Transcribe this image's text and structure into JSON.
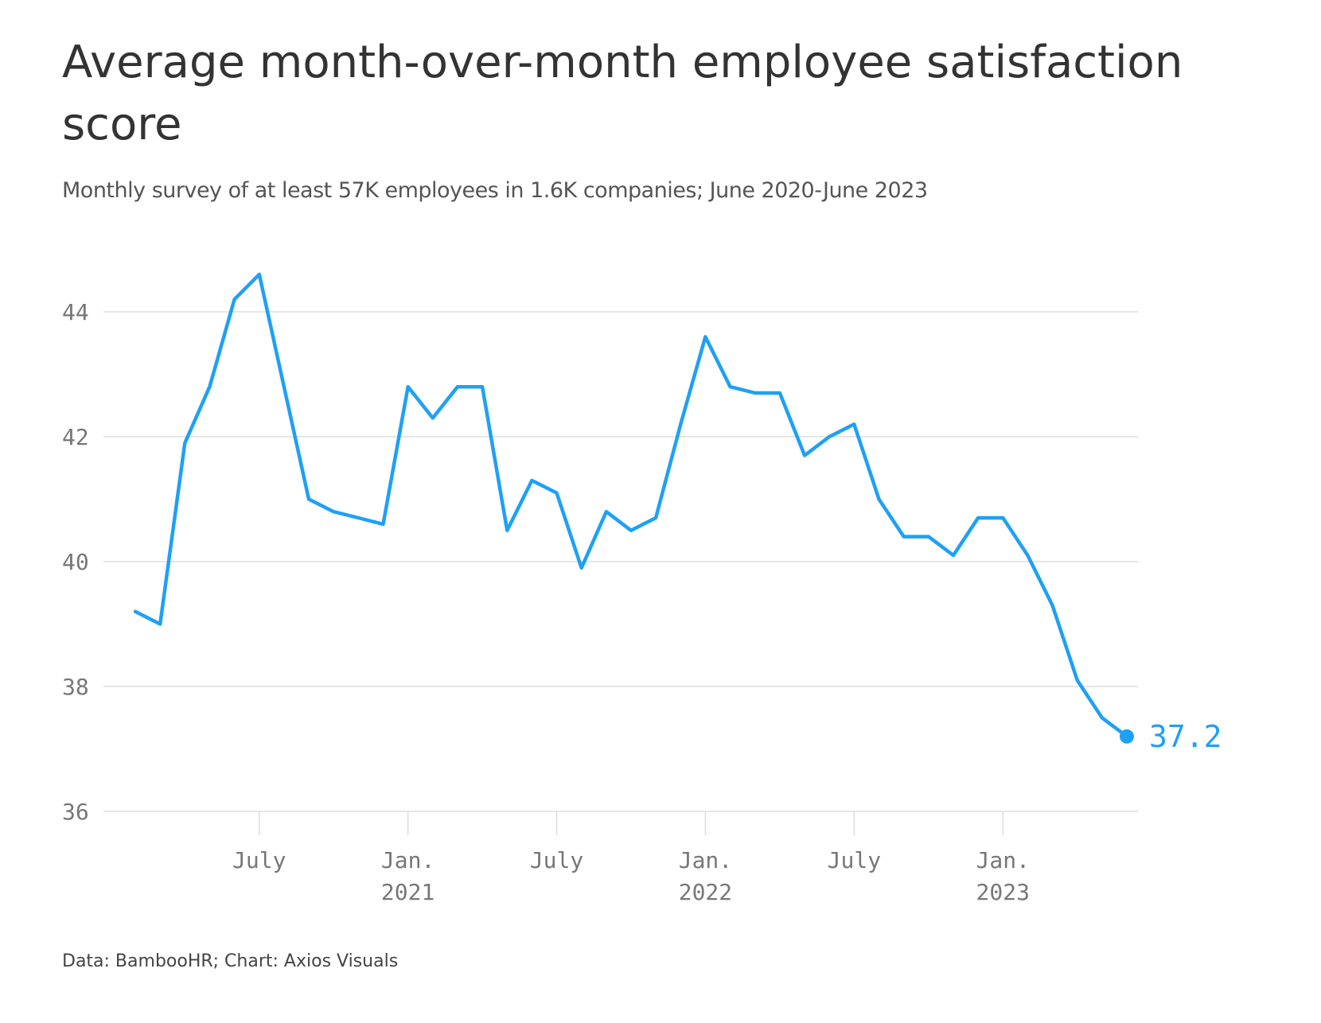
{
  "title": "Average month-over-month employee satisfaction score",
  "subtitle": "Monthly survey of at least 57K employees in 1.6K companies; June 2020-June 2023",
  "source": "Data: BambooHR; Chart: Axios Visuals",
  "colors": {
    "line": "#1fa0f5",
    "grid": "#dddddd",
    "tick": "#777777"
  },
  "chart_data": {
    "type": "line",
    "title": "Average month-over-month employee satisfaction score",
    "subtitle": "Monthly survey of at least 57K employees in 1.6K companies; June 2020-June 2023",
    "ylim": [
      36,
      45
    ],
    "yticks": [
      "36",
      "38",
      "40",
      "42",
      "44"
    ],
    "xticks": [
      {
        "label": "July",
        "year": "",
        "date": "2020-07"
      },
      {
        "label": "Jan.",
        "year": "2021",
        "date": "2021-01"
      },
      {
        "label": "July",
        "year": "",
        "date": "2021-07"
      },
      {
        "label": "Jan.",
        "year": "2022",
        "date": "2022-01"
      },
      {
        "label": "July",
        "year": "",
        "date": "2022-07"
      },
      {
        "label": "Jan.",
        "year": "2023",
        "date": "2023-01"
      }
    ],
    "grid": true,
    "end_label": "37.2",
    "series": [
      {
        "dates": [
          "2020-02",
          "2020-03",
          "2020-04",
          "2020-05",
          "2020-06",
          "2020-07",
          "2020-08",
          "2020-09",
          "2020-10",
          "2020-11",
          "2020-12",
          "2021-01",
          "2021-02",
          "2021-03",
          "2021-04",
          "2021-05",
          "2021-06",
          "2021-07",
          "2021-08",
          "2021-09",
          "2021-10",
          "2021-11",
          "2021-12",
          "2022-01",
          "2022-02",
          "2022-03",
          "2022-04",
          "2022-05",
          "2022-06",
          "2022-07",
          "2022-08",
          "2022-09",
          "2022-10",
          "2022-11",
          "2022-12",
          "2023-01",
          "2023-02",
          "2023-03",
          "2023-04",
          "2023-05",
          "2023-06"
        ],
        "values": [
          39.2,
          39.0,
          41.9,
          42.8,
          44.2,
          44.6,
          42.8,
          41.0,
          40.8,
          40.7,
          40.6,
          42.8,
          42.3,
          42.8,
          42.8,
          40.5,
          41.3,
          41.1,
          39.9,
          40.8,
          40.5,
          40.7,
          42.2,
          43.6,
          42.8,
          42.7,
          42.7,
          41.7,
          42.0,
          42.2,
          41.0,
          40.4,
          40.4,
          40.1,
          40.7,
          40.7,
          40.1,
          39.3,
          38.1,
          37.5,
          37.2
        ]
      }
    ]
  }
}
